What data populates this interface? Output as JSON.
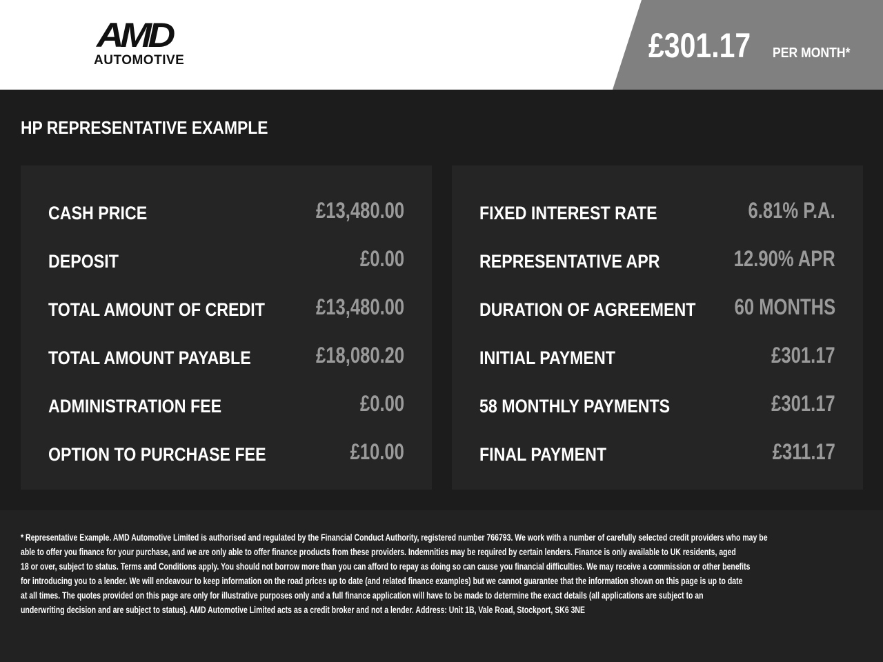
{
  "header": {
    "logo_text": "AMD",
    "logo_subtext": "AUTOMOTIVE",
    "monthly_price": "£301.17",
    "per_month_label": "PER MONTH*",
    "price_bg_color": "#808080"
  },
  "title": "HP REPRESENTATIVE EXAMPLE",
  "left_panel": [
    {
      "label": "CASH PRICE",
      "value": "£13,480.00"
    },
    {
      "label": "DEPOSIT",
      "value": "£0.00"
    },
    {
      "label": "TOTAL AMOUNT OF CREDIT",
      "value": "£13,480.00"
    },
    {
      "label": "TOTAL AMOUNT PAYABLE",
      "value": "£18,080.20"
    },
    {
      "label": "ADMINISTRATION FEE",
      "value": "£0.00"
    },
    {
      "label": "OPTION TO PURCHASE FEE",
      "value": "£10.00"
    }
  ],
  "right_panel": [
    {
      "label": "FIXED INTEREST RATE",
      "value": "6.81% P.A."
    },
    {
      "label": "REPRESENTATIVE APR",
      "value": "12.90% APR"
    },
    {
      "label": "DURATION OF AGREEMENT",
      "value": "60 MONTHS"
    },
    {
      "label": "INITIAL PAYMENT",
      "value": "£301.17"
    },
    {
      "label": "58 MONTHLY PAYMENTS",
      "value": "£301.17"
    },
    {
      "label": "FINAL PAYMENT",
      "value": "£311.17"
    }
  ],
  "disclaimer": [
    "* Representative Example. AMD Automotive Limited is authorised and regulated by the Financial Conduct Authority, registered number 766793. We work with a number of carefully selected credit providers who may be",
    "able to offer you finance for your purchase, and we are only able to offer finance products from these providers. Indemnities may be required by certain lenders. Finance is only available to UK residents, aged",
    "18 or over, subject to status. Terms and Conditions apply. You should not borrow more than you can afford to repay as doing so can cause you financial difficulties. We may receive a commission or other benefits",
    "for introducing you to a lender. We will endeavour to keep information on the road prices up to date (and related finance examples) but we cannot guarantee that the information shown on this page is up to date",
    "at all times. The quotes provided on this page are only for illustrative purposes only and a full finance application will have to be made to determine the exact details (all applications are subject to an",
    "underwriting decision and are subject to status). AMD Automotive Limited acts as a credit broker and not a lender. Address: Unit 1B, Vale Road, Stockport, SK6 3NE"
  ]
}
